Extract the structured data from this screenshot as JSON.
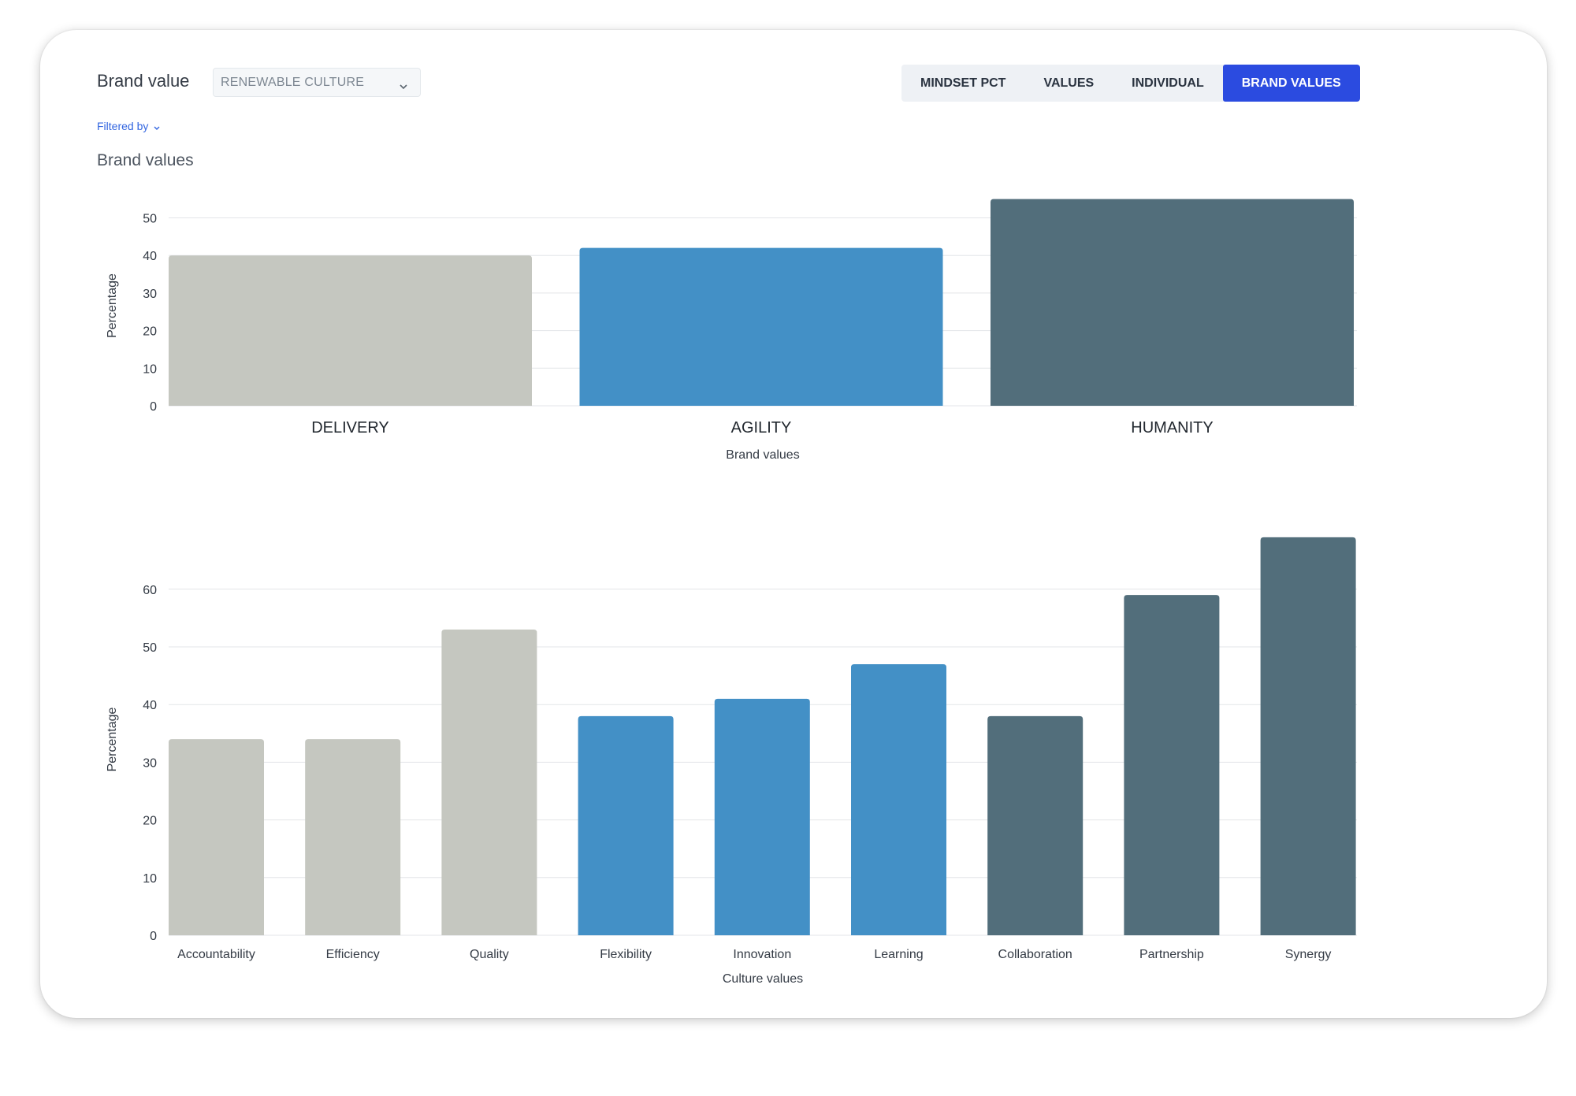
{
  "header": {
    "brand_label": "Brand value",
    "brand_select": {
      "selected": "RENEWABLE CULTURE",
      "icon": "chevron-down-icon"
    },
    "filtered_by": "Filtered by",
    "section_title": "Brand values",
    "tabs": [
      {
        "label": "MINDSET PCT",
        "active": false
      },
      {
        "label": "VALUES",
        "active": false
      },
      {
        "label": "INDIVIDUAL",
        "active": false
      },
      {
        "label": "BRAND VALUES",
        "active": true
      }
    ]
  },
  "colors": {
    "accent": "#2b4be0",
    "delivery": "#c5c7c0",
    "agility": "#4390c6",
    "humanity": "#526e7b",
    "grid": "#e3e5e8"
  },
  "chart_data": [
    {
      "type": "bar",
      "xlabel": "Brand values",
      "ylabel": "Percentage",
      "ylim": [
        0,
        55
      ],
      "yticks": [
        0,
        10,
        20,
        30,
        40,
        50
      ],
      "grid": true,
      "categories": [
        "DELIVERY",
        "AGILITY",
        "HUMANITY"
      ],
      "values": [
        40,
        42,
        55
      ],
      "bar_colors": [
        "#c5c7c0",
        "#4390c6",
        "#526e7b"
      ]
    },
    {
      "type": "bar",
      "xlabel": "Culture values",
      "ylabel": "Percentage",
      "ylim": [
        0,
        69
      ],
      "yticks": [
        0,
        10,
        20,
        30,
        40,
        50,
        60
      ],
      "grid": true,
      "categories": [
        "Accountability",
        "Efficiency",
        "Quality",
        "Flexibility",
        "Innovation",
        "Learning",
        "Collaboration",
        "Partnership",
        "Synergy"
      ],
      "values": [
        34,
        34,
        53,
        38,
        41,
        47,
        38,
        59,
        69
      ],
      "bar_colors": [
        "#c5c7c0",
        "#c5c7c0",
        "#c5c7c0",
        "#4390c6",
        "#4390c6",
        "#4390c6",
        "#526e7b",
        "#526e7b",
        "#526e7b"
      ]
    }
  ]
}
